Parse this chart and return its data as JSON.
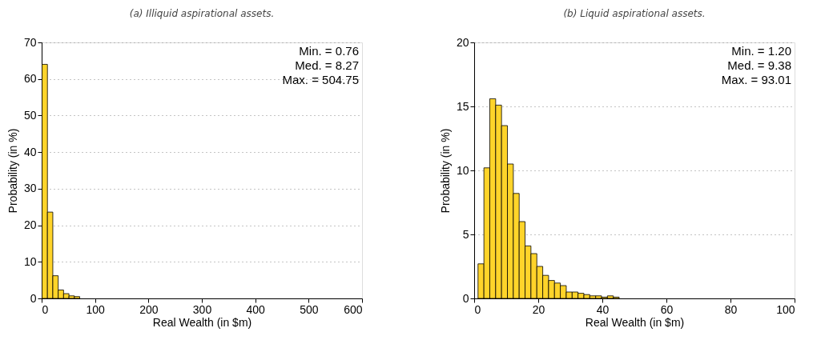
{
  "chart_data": [
    {
      "type": "histogram",
      "title": "(a) Illiquid aspirational assets.",
      "xlabel": "Real Wealth (in $m)",
      "ylabel": "Probability (in %)",
      "bins": [
        0.76,
        10.84,
        20.92,
        31.0,
        41.08,
        51.16,
        61.24,
        71.32
      ],
      "values": [
        64,
        23.6,
        6.2,
        2.3,
        1.3,
        0.7,
        0.5
      ],
      "color": "#ffd42a",
      "xlim": [
        0,
        600
      ],
      "xticks": [
        0,
        100,
        200,
        300,
        400,
        500,
        600
      ],
      "ylim": [
        0,
        70
      ],
      "yticks": [
        0,
        10,
        20,
        30,
        40,
        50,
        60,
        70
      ],
      "grid": "y",
      "annotations": [
        "Min. = 0.76",
        "Med. = 8.27",
        "Max. = 504.75"
      ]
    },
    {
      "type": "histogram",
      "title": "(b) Liquid aspirational assets.",
      "xlabel": "Real Wealth (in $m)",
      "ylabel": "Probability (in %)",
      "bins": [
        1.2,
        3.04,
        4.87,
        6.71,
        8.54,
        10.38,
        12.22,
        14.05,
        15.89,
        17.72,
        19.56,
        21.4,
        23.23,
        25.07,
        26.9,
        28.74,
        30.58,
        32.41,
        34.25,
        36.08,
        37.92,
        39.76,
        41.59,
        43.43,
        45.26
      ],
      "values": [
        2.7,
        10.2,
        15.6,
        15.1,
        13.5,
        10.5,
        8.2,
        6.0,
        4.1,
        3.5,
        2.5,
        1.8,
        1.4,
        1.2,
        1.0,
        0.5,
        0.5,
        0.4,
        0.3,
        0.2,
        0.2,
        0.1,
        0.2,
        0.1
      ],
      "color": "#ffd42a",
      "xlim": [
        0,
        100
      ],
      "xticks": [
        0,
        20,
        40,
        60,
        80,
        100
      ],
      "ylim": [
        0,
        20
      ],
      "yticks": [
        0,
        5,
        10,
        15,
        20
      ],
      "grid": "y",
      "annotations": [
        "Min. = 1.20",
        "Med. = 9.38",
        "Max. = 93.01"
      ]
    }
  ]
}
